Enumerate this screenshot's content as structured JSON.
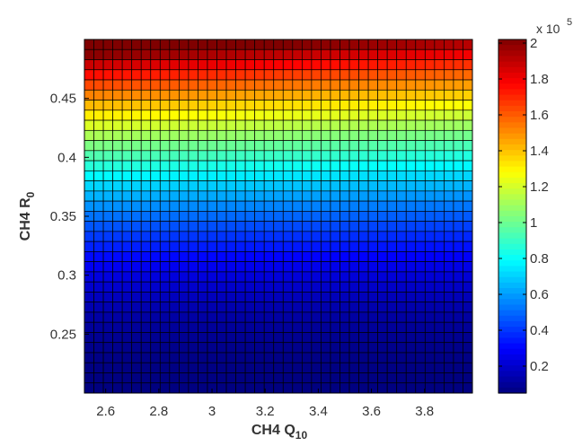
{
  "chart_data": {
    "type": "heatmap",
    "xlabel": {
      "main": "CH4 Q",
      "sub": "10"
    },
    "ylabel": {
      "main": "CH4 R",
      "sub": "0"
    },
    "x_range": [
      2.52,
      3.98
    ],
    "y_range": [
      0.2,
      0.5
    ],
    "x_ticks": [
      "2.6",
      "2.8",
      "3",
      "3.2",
      "3.4",
      "3.6",
      "3.8"
    ],
    "y_ticks": [
      "0.25",
      "0.3",
      "0.35",
      "0.4",
      "0.45"
    ],
    "n_cols": 41,
    "n_rows": 35,
    "grid": true,
    "colormap": "jet",
    "colorbar": {
      "range": [
        0.05,
        2.02
      ],
      "ticks": [
        "0.2",
        "0.4",
        "0.6",
        "0.8",
        "1",
        "1.2",
        "1.4",
        "1.6",
        "1.8",
        "2"
      ],
      "multiplier": "x 10",
      "exponent": "5"
    },
    "value_model": "value (×10^5) ≈ 0.05 + 1.92·r^2.2·(1.12 − 0.12·q), r = (R0 − 0.2)/0.3, q = (Q10 − 2.52)/1.46"
  }
}
